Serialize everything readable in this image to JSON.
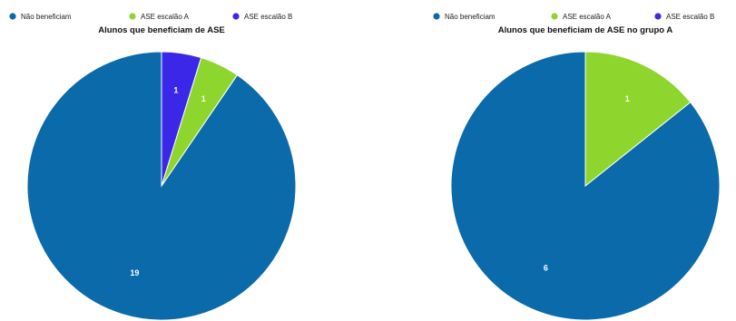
{
  "chart_data": [
    {
      "type": "pie",
      "title": "Alunos que beneficiam de ASE",
      "legend_position": "top",
      "series": [
        {
          "name": "Não beneficiam",
          "value": 19,
          "color": "#0a6aaa"
        },
        {
          "name": "ASE escalão A",
          "value": 1,
          "color": "#8ed62e"
        },
        {
          "name": "ASE escalão B",
          "value": 1,
          "color": "#3b27e8"
        }
      ]
    },
    {
      "type": "pie",
      "title": "Alunos que beneficiam de ASE no grupo A",
      "legend_position": "top",
      "series": [
        {
          "name": "Não beneficiam",
          "value": 6,
          "color": "#0a6aaa"
        },
        {
          "name": "ASE escalão A",
          "value": 1,
          "color": "#8ed62e"
        },
        {
          "name": "ASE escalão B",
          "value": 0,
          "color": "#3b27e8"
        }
      ]
    }
  ]
}
